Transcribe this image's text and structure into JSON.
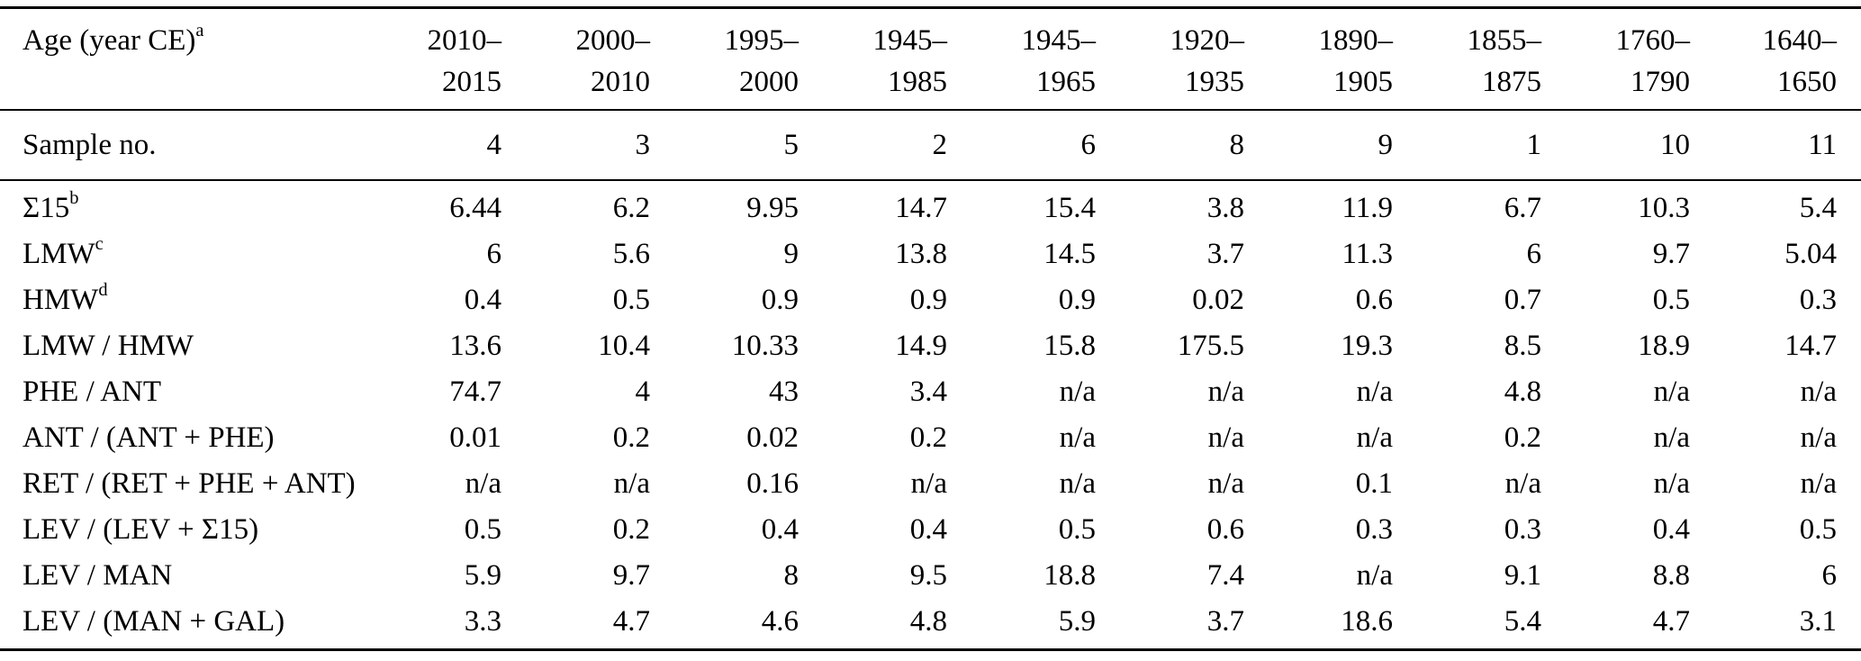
{
  "table": {
    "header": {
      "label": "Age (year CE)",
      "label_sup": "a",
      "columns": [
        {
          "line1": "2010–",
          "line2": "2015"
        },
        {
          "line1": "2000–",
          "line2": "2010"
        },
        {
          "line1": "1995–",
          "line2": "2000"
        },
        {
          "line1": "1945–",
          "line2": "1985"
        },
        {
          "line1": "1945–",
          "line2": "1965"
        },
        {
          "line1": "1920–",
          "line2": "1935"
        },
        {
          "line1": "1890–",
          "line2": "1905"
        },
        {
          "line1": "1855–",
          "line2": "1875"
        },
        {
          "line1": "1760–",
          "line2": "1790"
        },
        {
          "line1": "1640–",
          "line2": "1650"
        }
      ]
    },
    "sample_row": {
      "label": "Sample no.",
      "values": [
        "4",
        "3",
        "5",
        "2",
        "6",
        "8",
        "9",
        "1",
        "10",
        "11"
      ]
    },
    "rows": [
      {
        "label": "Σ15",
        "sup": "b",
        "values": [
          "6.44",
          "6.2",
          "9.95",
          "14.7",
          "15.4",
          "3.8",
          "11.9",
          "6.7",
          "10.3",
          "5.4"
        ]
      },
      {
        "label": "LMW",
        "sup": "c",
        "values": [
          "6",
          "5.6",
          "9",
          "13.8",
          "14.5",
          "3.7",
          "11.3",
          "6",
          "9.7",
          "5.04"
        ]
      },
      {
        "label": "HMW",
        "sup": "d",
        "values": [
          "0.4",
          "0.5",
          "0.9",
          "0.9",
          "0.9",
          "0.02",
          "0.6",
          "0.7",
          "0.5",
          "0.3"
        ]
      },
      {
        "label": "LMW / HMW",
        "sup": "",
        "values": [
          "13.6",
          "10.4",
          "10.33",
          "14.9",
          "15.8",
          "175.5",
          "19.3",
          "8.5",
          "18.9",
          "14.7"
        ]
      },
      {
        "label": "PHE / ANT",
        "sup": "",
        "values": [
          "74.7",
          "4",
          "43",
          "3.4",
          "n/a",
          "n/a",
          "n/a",
          "4.8",
          "n/a",
          "n/a"
        ]
      },
      {
        "label": "ANT / (ANT + PHE)",
        "sup": "",
        "values": [
          "0.01",
          "0.2",
          "0.02",
          "0.2",
          "n/a",
          "n/a",
          "n/a",
          "0.2",
          "n/a",
          "n/a"
        ]
      },
      {
        "label": "RET / (RET + PHE + ANT)",
        "sup": "",
        "values": [
          "n/a",
          "n/a",
          "0.16",
          "n/a",
          "n/a",
          "n/a",
          "0.1",
          "n/a",
          "n/a",
          "n/a"
        ]
      },
      {
        "label": "LEV / (LEV + Σ15)",
        "sup": "",
        "values": [
          "0.5",
          "0.2",
          "0.4",
          "0.4",
          "0.5",
          "0.6",
          "0.3",
          "0.3",
          "0.4",
          "0.5"
        ]
      },
      {
        "label": "LEV / MAN",
        "sup": "",
        "values": [
          "5.9",
          "9.7",
          "8",
          "9.5",
          "18.8",
          "7.4",
          "n/a",
          "9.1",
          "8.8",
          "6"
        ]
      },
      {
        "label": "LEV / (MAN + GAL)",
        "sup": "",
        "values": [
          "3.3",
          "4.7",
          "4.6",
          "4.8",
          "5.9",
          "3.7",
          "18.6",
          "5.4",
          "4.7",
          "3.1"
        ]
      }
    ]
  }
}
